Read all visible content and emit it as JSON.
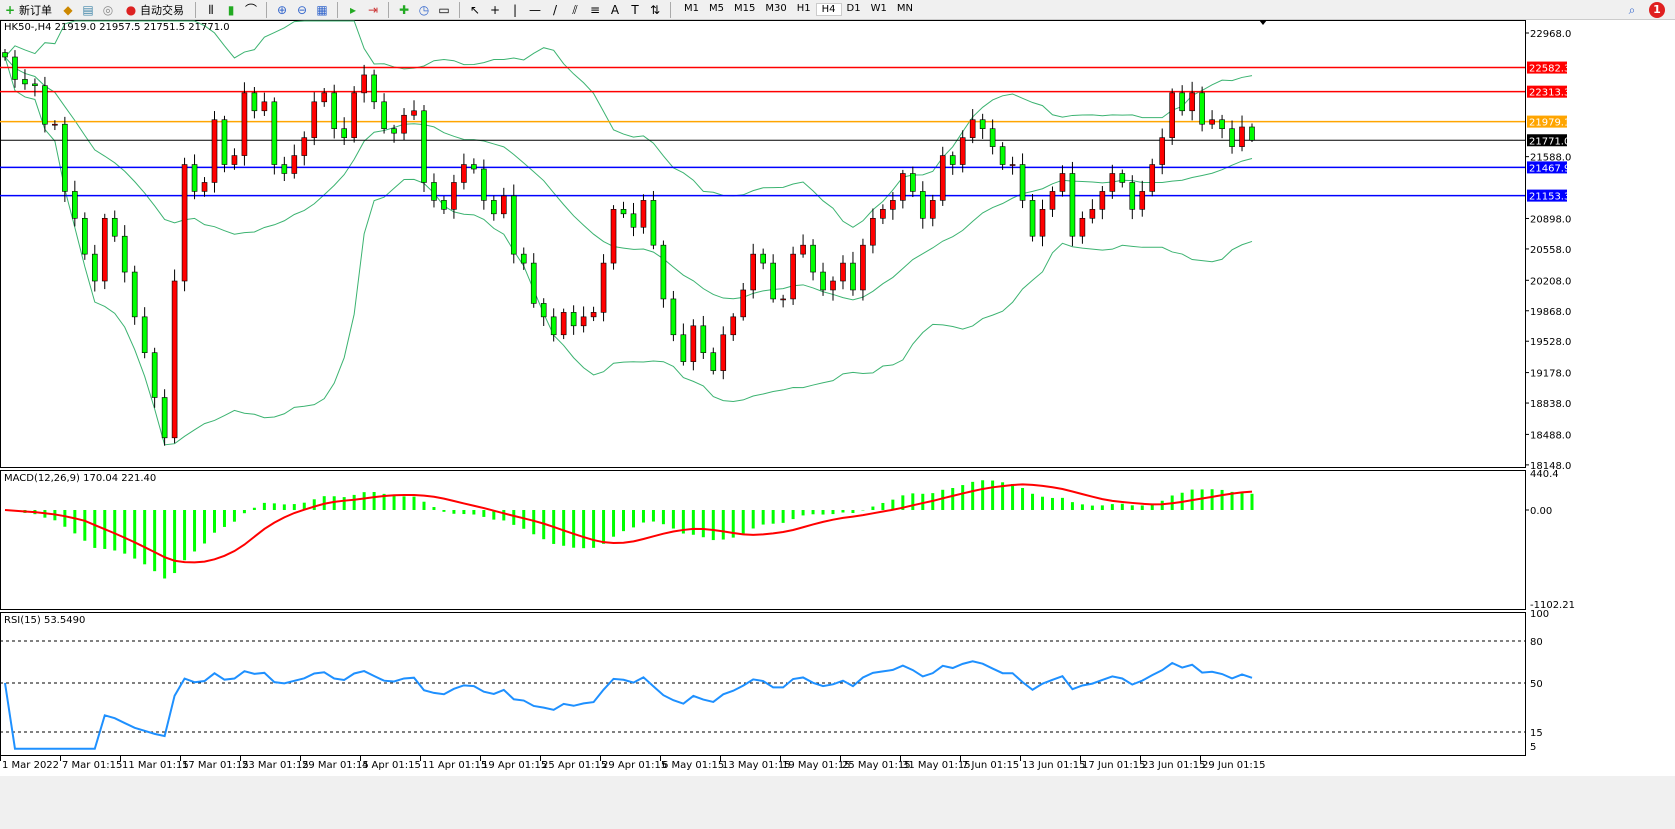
{
  "toolbar": {
    "new_order": "新订单",
    "auto_trading": "自动交易",
    "timeframes": [
      "M1",
      "M5",
      "M15",
      "M30",
      "H1",
      "H4",
      "D1",
      "W1",
      "MN"
    ],
    "active_timeframe": "H4",
    "notification_count": "1",
    "icons": [
      "new-order-icon",
      "market-watch-icon",
      "navigator-icon",
      "signal-icon",
      "auto-trading-icon",
      "bar-chart-icon",
      "candlestick-icon",
      "line-chart-icon",
      "zoom-in-icon",
      "zoom-out-icon",
      "tile-windows-icon",
      "auto-scroll-icon",
      "chart-shift-icon",
      "indicators-icon",
      "periods-icon",
      "templates-icon",
      "cursor-icon",
      "crosshair-icon",
      "vertical-line-icon",
      "horizontal-line-icon",
      "trendline-icon",
      "equidistant-channel-icon",
      "fibonacci-icon",
      "text-icon",
      "text-label-icon",
      "arrows-icon",
      "search-icon"
    ]
  },
  "chart": {
    "header": "HK50-,H4  21919.0 21957.5 21751.5 21771.0",
    "price_ticks": [
      "22968.0",
      "21588.0",
      "20898.0",
      "20558.0",
      "20208.0",
      "19868.0",
      "19528.0",
      "19178.0",
      "18838.0",
      "18488.0",
      "18148.0"
    ],
    "levels": [
      {
        "price": 22582.3,
        "label": "22582.3",
        "color": "#ff0000"
      },
      {
        "price": 22313.3,
        "label": "22313.3",
        "color": "#ff0000"
      },
      {
        "price": 21979.1,
        "label": "21979.1",
        "color": "#ffa500"
      },
      {
        "price": 21771.0,
        "label": "21771.0",
        "color": "#000000"
      },
      {
        "price": 21467.9,
        "label": "21467.9",
        "color": "#0000ff"
      },
      {
        "price": 21153.3,
        "label": "21153.3",
        "color": "#0000ff"
      }
    ],
    "colors": {
      "up": "#ff0000",
      "down": "#00ff00",
      "bands": "#3cb371",
      "macd_hist": "#00ff00",
      "macd_signal": "#ff0000",
      "rsi": "#1e90ff"
    },
    "last_bar": {
      "open": 21919.0,
      "high": 21957.5,
      "low": 21751.5,
      "close": 21771.0
    },
    "closes": [
      22700,
      22450,
      22400,
      22380,
      21950,
      21950,
      21200,
      20900,
      20500,
      20200,
      20900,
      20700,
      20300,
      19800,
      19400,
      18900,
      18450,
      20200,
      21500,
      21200,
      21300,
      22000,
      21500,
      21600,
      22300,
      22100,
      22200,
      21500,
      21400,
      21600,
      21800,
      22200,
      22300,
      21900,
      21800,
      22300,
      22500,
      22200,
      21900,
      21850,
      22050,
      22100,
      21300,
      21100,
      21000,
      21300,
      21500,
      21450,
      21100,
      20950,
      21150,
      20500,
      20400,
      19950,
      19800,
      19600,
      19850,
      19700,
      19800,
      19850,
      20400,
      21000,
      20950,
      20800,
      21100,
      20600,
      20000,
      19600,
      19300,
      19700,
      19400,
      19200,
      19600,
      19800,
      20100,
      20500,
      20400,
      20000,
      20000,
      20500,
      20600,
      20300,
      20100,
      20200,
      20400,
      20100,
      20600,
      20900,
      21000,
      21100,
      21400,
      21200,
      20900,
      21100,
      21600,
      21500,
      21800,
      22000,
      21900,
      21700,
      21500,
      21500,
      21100,
      20700,
      21000,
      21200,
      21400,
      20700,
      20900,
      21000,
      21200,
      21400,
      21300,
      21000,
      21200,
      21500,
      21800,
      22300,
      22100,
      22300,
      21950,
      22000,
      21900,
      21700,
      21919,
      21771
    ]
  },
  "macd": {
    "label": "MACD(12,26,9) 170.04 221.40",
    "ticks": [
      "440.4",
      "0.00",
      "-1102.21"
    ]
  },
  "rsi": {
    "label": "RSI(15) 53.5490",
    "ticks": [
      "100",
      "80",
      "50",
      "15",
      "5"
    ]
  },
  "dates": [
    "1 Mar 2022",
    "7 Mar 01:15",
    "11 Mar 01:15",
    "17 Mar 01:15",
    "23 Mar 01:15",
    "29 Mar 01:15",
    "4 Apr 01:15",
    "11 Apr 01:15",
    "19 Apr 01:15",
    "25 Apr 01:15",
    "29 Apr 01:15",
    "6 May 01:15",
    "13 May 01:15",
    "19 May 01:15",
    "25 May 01:15",
    "31 May 01:15",
    "7 Jun 01:15",
    "13 Jun 01:15",
    "17 Jun 01:15",
    "23 Jun 01:15",
    "29 Jun 01:15"
  ]
}
